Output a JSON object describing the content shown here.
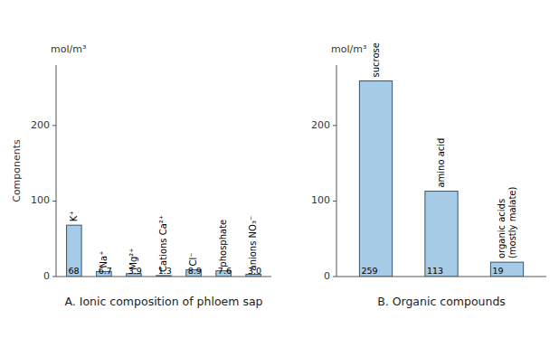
{
  "chart_data": [
    {
      "type": "bar",
      "title": "A. Ionic composition of phloem sap",
      "ylabel": "Components",
      "annotations": [
        "mol/m³"
      ],
      "categories": [
        "K⁺",
        "Na⁺",
        "Mg²⁺",
        "Cations Ca²⁺",
        "Cl⁻",
        "phosphate",
        "anions NO₃⁻"
      ],
      "values": [
        68,
        6.7,
        3.9,
        1.3,
        8.9,
        7.6,
        3.0
      ],
      "value_labels": [
        "68",
        "6.7",
        "3.9",
        "1.3",
        "8.9",
        "7.6",
        "3.0"
      ],
      "data_labels": true,
      "color": "#a6cbe6",
      "ylim": [
        0,
        280
      ],
      "yticks": [
        0,
        100,
        200
      ],
      "grid": false
    },
    {
      "type": "bar",
      "title": "B. Organic compounds",
      "annotations": [
        "mol/m³"
      ],
      "categories": [
        "sucrose",
        "amino acid",
        "organic acids\n(mostly malate)"
      ],
      "values": [
        259,
        113,
        19
      ],
      "value_labels": [
        "259",
        "113",
        "19"
      ],
      "data_labels": true,
      "color": "#a6cbe6",
      "ylim": [
        0,
        280
      ],
      "yticks": [
        0,
        100,
        200
      ],
      "grid": false
    }
  ]
}
